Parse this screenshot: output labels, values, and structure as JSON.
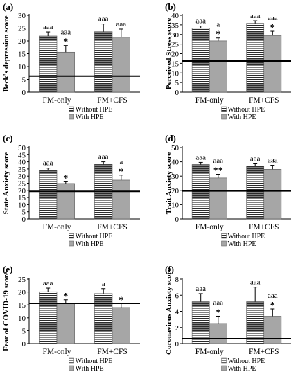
{
  "legend": {
    "without": "Without HPE",
    "with": "With HPE"
  },
  "categories": [
    "FM-only",
    "FM+CFS"
  ],
  "chart_data": [
    {
      "type": "bar",
      "panel_label": "(a)",
      "ylabel": "Beck's depression score",
      "ylim": [
        0,
        30
      ],
      "yticks": [
        0,
        5,
        10,
        15,
        20,
        25,
        30
      ],
      "reference_line": 6.3,
      "categories": [
        "FM-only",
        "FM+CFS"
      ],
      "series": [
        {
          "name": "Without HPE",
          "values": [
            21.9,
            23.6
          ],
          "errors": [
            1.6,
            3.0
          ],
          "annotations": [
            "aaa",
            "aaa"
          ]
        },
        {
          "name": "With HPE",
          "values": [
            15.6,
            21.4
          ],
          "errors": [
            2.6,
            3.2
          ],
          "annotations": [
            "aaa\n*",
            "aaa"
          ]
        }
      ]
    },
    {
      "type": "bar",
      "panel_label": "(b)",
      "ylabel": "Perceived Stress score",
      "ylim": [
        0,
        40
      ],
      "yticks": [
        0,
        5,
        10,
        15,
        20,
        25,
        30,
        35,
        40
      ],
      "reference_line": 16.2,
      "categories": [
        "FM-only",
        "FM+CFS"
      ],
      "series": [
        {
          "name": "Without HPE",
          "values": [
            33.2,
            35.8
          ],
          "errors": [
            1.2,
            1.3
          ],
          "annotations": [
            "aaa",
            "aaa"
          ]
        },
        {
          "name": "With HPE",
          "values": [
            26.7,
            29.5
          ],
          "errors": [
            1.5,
            2.2
          ],
          "annotations": [
            "a\n*",
            "aaa\n*"
          ]
        }
      ]
    },
    {
      "type": "bar",
      "panel_label": "(c)",
      "ylabel": "State Anxiety score",
      "ylim": [
        0,
        50
      ],
      "yticks": [
        0,
        5,
        10,
        15,
        20,
        25,
        30,
        35,
        40,
        45,
        50
      ],
      "reference_line": 19.3,
      "categories": [
        "FM-only",
        "FM+CFS"
      ],
      "series": [
        {
          "name": "Without HPE",
          "values": [
            34.0,
            38.2
          ],
          "errors": [
            1.6,
            1.8
          ],
          "annotations": [
            "aaa",
            "aaa"
          ]
        },
        {
          "name": "With HPE",
          "values": [
            24.8,
            27.2
          ],
          "errors": [
            1.2,
            3.5
          ],
          "annotations": [
            "*",
            "a\n*"
          ]
        }
      ]
    },
    {
      "type": "bar",
      "panel_label": "(d)",
      "ylabel": "Trait Anxiety score",
      "ylim": [
        0,
        50
      ],
      "yticks": [
        0,
        10,
        20,
        30,
        40,
        50
      ],
      "reference_line": 19.6,
      "categories": [
        "FM-only",
        "FM+CFS"
      ],
      "series": [
        {
          "name": "Without HPE",
          "values": [
            38.1,
            37.0
          ],
          "errors": [
            1.5,
            1.6
          ],
          "annotations": [
            "aaa",
            "aaa"
          ]
        },
        {
          "name": "With HPE",
          "values": [
            28.7,
            34.8
          ],
          "errors": [
            2.6,
            2.8
          ],
          "annotations": [
            "aaa\n**",
            "aaa"
          ]
        }
      ]
    },
    {
      "type": "bar",
      "panel_label": "(e)",
      "ylabel": "Fear of COVID-19 score",
      "ylim": [
        0,
        25
      ],
      "yticks": [
        0,
        5,
        10,
        15,
        20,
        25
      ],
      "reference_line": 15.6,
      "categories": [
        "FM-only",
        "FM+CFS"
      ],
      "series": [
        {
          "name": "Without HPE",
          "values": [
            20.1,
            19.4
          ],
          "errors": [
            1.4,
            1.9
          ],
          "annotations": [
            "aaa",
            "a"
          ]
        },
        {
          "name": "With HPE",
          "values": [
            15.4,
            14.0
          ],
          "errors": [
            1.6,
            1.5
          ],
          "annotations": [
            "*",
            "*"
          ]
        }
      ]
    },
    {
      "type": "bar",
      "panel_label": "(f)",
      "ylabel": "Coronavirus Anxiety score",
      "ylim": [
        0,
        8
      ],
      "yticks": [
        0,
        2,
        4,
        6,
        8
      ],
      "reference_line": 0.6,
      "categories": [
        "FM-only",
        "FM+CFS"
      ],
      "series": [
        {
          "name": "Without HPE",
          "values": [
            5.2,
            5.2
          ],
          "errors": [
            1.0,
            1.8
          ],
          "annotations": [
            "aaa",
            "aaa"
          ]
        },
        {
          "name": "With HPE",
          "values": [
            2.5,
            3.4
          ],
          "errors": [
            0.9,
            0.9
          ],
          "annotations": [
            "aaa\n*",
            "aaa\n*"
          ]
        }
      ]
    }
  ]
}
